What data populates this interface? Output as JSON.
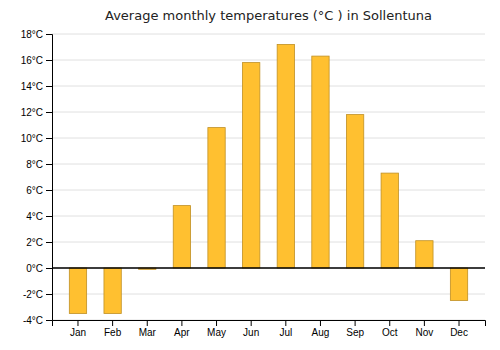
{
  "chart_data": {
    "type": "bar",
    "title": "Average monthly temperatures (°C ) in Sollentuna",
    "categories": [
      "Jan",
      "Feb",
      "Mar",
      "Apr",
      "May",
      "Jun",
      "Jul",
      "Aug",
      "Sep",
      "Oct",
      "Nov",
      "Dec"
    ],
    "values": [
      -3.5,
      -3.5,
      -0.1,
      4.8,
      10.8,
      15.8,
      17.2,
      16.3,
      11.8,
      7.3,
      2.1,
      -2.5
    ],
    "color": "#FFC030",
    "ylim": [
      -4,
      18
    ],
    "yticks": [
      {
        "value": -4,
        "label": "-4°C"
      },
      {
        "value": -2,
        "label": "-2°C"
      },
      {
        "value": 0,
        "label": "0°C"
      },
      {
        "value": 2,
        "label": "2°C"
      },
      {
        "value": 4,
        "label": "4°C"
      },
      {
        "value": 6,
        "label": "6°C"
      },
      {
        "value": 8,
        "label": "8°C"
      },
      {
        "value": 10,
        "label": "10°C"
      },
      {
        "value": 12,
        "label": "12°C"
      },
      {
        "value": 14,
        "label": "14°C"
      },
      {
        "value": 16,
        "label": "16°C"
      },
      {
        "value": 18,
        "label": "18°C"
      }
    ],
    "grid": true
  }
}
